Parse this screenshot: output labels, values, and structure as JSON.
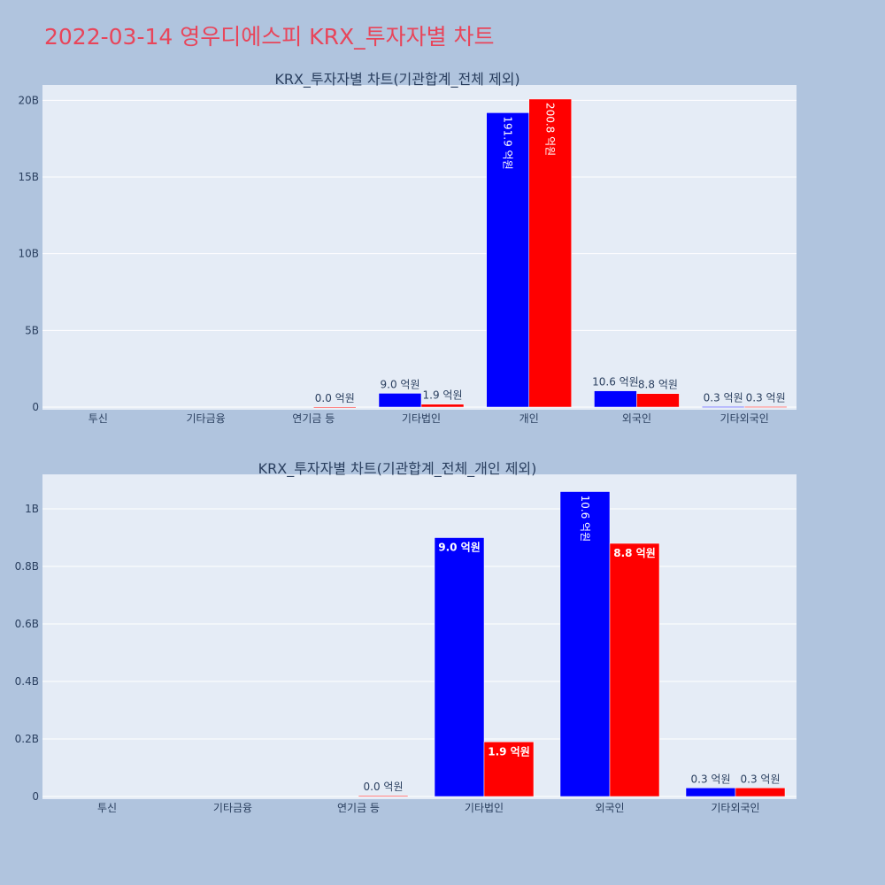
{
  "page_title": "2022-03-14 영우디에스피 KRX_투자자별 차트",
  "colors": {
    "buy": "#0000ff",
    "sell": "#ff0000",
    "title": "#e8455a",
    "plot_bg": "#e5ecf6",
    "paper_bg": "#b0c4de",
    "text": "#2a3f5f"
  },
  "chart_data": [
    {
      "type": "bar",
      "title": "KRX_투자자별 차트(기관합계_전체 제외)",
      "categories": [
        "투신",
        "기타금융",
        "연기금 등",
        "기타법인",
        "개인",
        "외국인",
        "기타외국인"
      ],
      "series": [
        {
          "values": [
            0,
            0,
            0,
            0.9,
            19.19,
            1.06,
            0.03
          ],
          "labels": [
            "",
            "",
            "",
            "9.0 억원",
            "191.9 억원",
            "10.6 억원",
            "0.3 억원"
          ],
          "color": "#0000ff"
        },
        {
          "values": [
            0,
            0,
            0.003,
            0.19,
            20.08,
            0.88,
            0.03
          ],
          "labels": [
            "",
            "",
            "0.0 억원",
            "1.9 억원",
            "200.8 억원",
            "8.8 억원",
            "0.3 억원"
          ],
          "color": "#ff0000"
        }
      ],
      "ylim": [
        0,
        21
      ],
      "yticks": [
        0,
        5,
        10,
        15,
        20
      ],
      "ytick_labels": [
        "0",
        "5B",
        "10B",
        "15B",
        "20B"
      ],
      "unit_scale": 1000000000,
      "grid": true,
      "xlabel": "",
      "ylabel": ""
    },
    {
      "type": "bar",
      "title": "KRX_투자자별 차트(기관합계_전체_개인 제외)",
      "categories": [
        "투신",
        "기타금융",
        "연기금 등",
        "기타법인",
        "외국인",
        "기타외국인"
      ],
      "series": [
        {
          "values": [
            0,
            0,
            0,
            0.9,
            1.06,
            0.03
          ],
          "labels": [
            "",
            "",
            "",
            "9.0 억원",
            "10.6 억원",
            "0.3 억원"
          ],
          "color": "#0000ff"
        },
        {
          "values": [
            0,
            0,
            0.003,
            0.19,
            0.88,
            0.03
          ],
          "labels": [
            "",
            "",
            "0.0 억원",
            "1.9 억원",
            "8.8 억원",
            "0.3 억원"
          ],
          "color": "#ff0000"
        }
      ],
      "ylim": [
        0,
        1.12
      ],
      "yticks": [
        0,
        0.2,
        0.4,
        0.6,
        0.8,
        1.0
      ],
      "ytick_labels": [
        "0",
        "0.2B",
        "0.4B",
        "0.6B",
        "0.8B",
        "1B"
      ],
      "unit_scale": 1000000000,
      "grid": true,
      "xlabel": "",
      "ylabel": ""
    }
  ]
}
